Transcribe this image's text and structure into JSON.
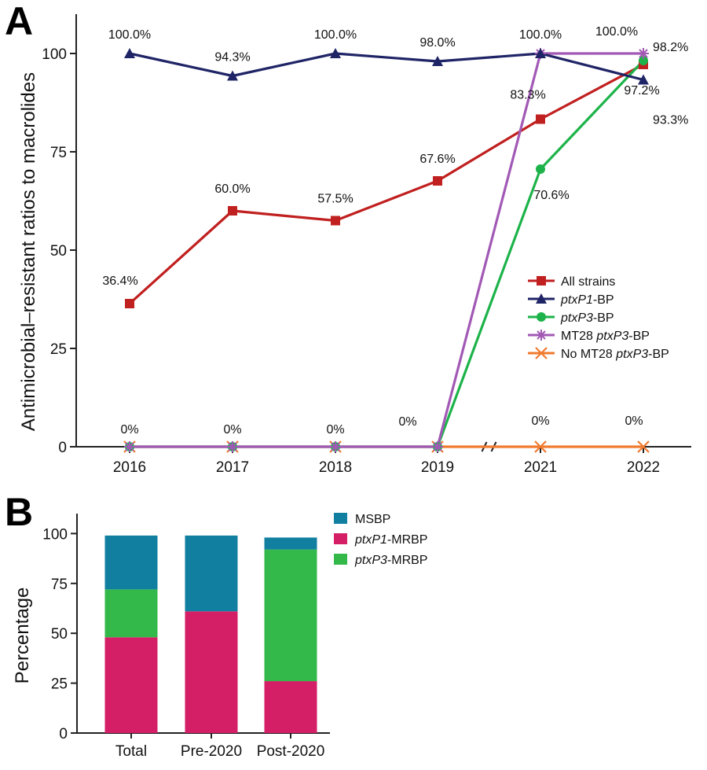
{
  "panel_labels": [
    "A",
    "B"
  ],
  "chart_data": [
    {
      "type": "line",
      "panel": "A",
      "ylabel": "Antimicrobial–resistant ratios to macrolides",
      "xlabel": "",
      "categories": [
        "2016",
        "2017",
        "2018",
        "2019",
        "2021",
        "2022"
      ],
      "ylim": [
        0,
        110
      ],
      "yticks": [
        0,
        25,
        50,
        75,
        100
      ],
      "axis_break_between": [
        "2019",
        "2021"
      ],
      "legend_position": "center-right",
      "series": [
        {
          "name": "All strains",
          "name_parts": [
            {
              "text": "All strains",
              "italic": false
            }
          ],
          "color": "#c0201f",
          "marker": "square",
          "values": [
            36.4,
            60.0,
            57.5,
            67.6,
            83.3,
            97.2
          ],
          "labels": [
            "36.4%",
            "60.0%",
            "57.5%",
            "67.6%",
            "83.3%",
            "97.2%"
          ]
        },
        {
          "name": "ptxP1-BP",
          "name_parts": [
            {
              "text": "ptxP1",
              "italic": true
            },
            {
              "text": "-BP",
              "italic": false
            }
          ],
          "color": "#1f2466",
          "marker": "triangle",
          "values": [
            100.0,
            94.3,
            100.0,
            98.0,
            100.0,
            93.3
          ],
          "labels": [
            "100.0%",
            "94.3%",
            "100.0%",
            "98.0%",
            "100.0%",
            "93.3%"
          ]
        },
        {
          "name": "ptxP3-BP",
          "name_parts": [
            {
              "text": "ptxP3",
              "italic": true
            },
            {
              "text": "-BP",
              "italic": false
            }
          ],
          "color": "#1db34a",
          "marker": "circle",
          "values": [
            0,
            0,
            0,
            0,
            70.6,
            98.2
          ],
          "labels": [
            "",
            "",
            "",
            "",
            "70.6%",
            "98.2%"
          ]
        },
        {
          "name": "MT28 ptxP3-BP",
          "name_parts": [
            {
              "text": "MT28 ",
              "italic": false
            },
            {
              "text": "ptxP3",
              "italic": true
            },
            {
              "text": "-BP",
              "italic": false
            }
          ],
          "color": "#a259b5",
          "marker": "asterisk",
          "values": [
            0,
            0,
            0,
            0,
            100.0,
            100.0
          ],
          "labels": [
            "",
            "",
            "",
            "",
            "",
            "100.0%"
          ]
        },
        {
          "name": "No MT28 ptxP3-BP",
          "name_parts": [
            {
              "text": "No MT28 ",
              "italic": false
            },
            {
              "text": "ptxP3",
              "italic": true
            },
            {
              "text": "-BP",
              "italic": false
            }
          ],
          "color": "#f07a2e",
          "marker": "x",
          "values": [
            0,
            0,
            0,
            0,
            0,
            0
          ],
          "labels": [
            "0%",
            "0%",
            "0%",
            "0%",
            "0%",
            "0%"
          ]
        }
      ]
    },
    {
      "type": "bar",
      "stacked": true,
      "panel": "B",
      "ylabel": "Percentage",
      "xlabel": "",
      "categories": [
        "Total",
        "Pre-2020",
        "Post-2020"
      ],
      "ylim": [
        0,
        110
      ],
      "yticks": [
        0,
        25,
        50,
        75,
        100
      ],
      "legend_position": "top-right",
      "series": [
        {
          "name": "ptxP1-MRBP",
          "name_parts": [
            {
              "text": "ptxP1",
              "italic": true
            },
            {
              "text": "-MRBP",
              "italic": false
            }
          ],
          "color": "#d41f66",
          "values": [
            48,
            61,
            26
          ]
        },
        {
          "name": "ptxP3-MRBP",
          "name_parts": [
            {
              "text": "ptxP3",
              "italic": true
            },
            {
              "text": "-MRBP",
              "italic": false
            }
          ],
          "color": "#33b84a",
          "values": [
            24,
            0,
            66
          ]
        },
        {
          "name": "MSBP",
          "name_parts": [
            {
              "text": "MSBP",
              "italic": false
            }
          ],
          "color": "#117fa0",
          "values": [
            27,
            38,
            6
          ]
        }
      ],
      "legend_order": [
        "MSBP",
        "ptxP1-MRBP",
        "ptxP3-MRBP"
      ]
    }
  ]
}
